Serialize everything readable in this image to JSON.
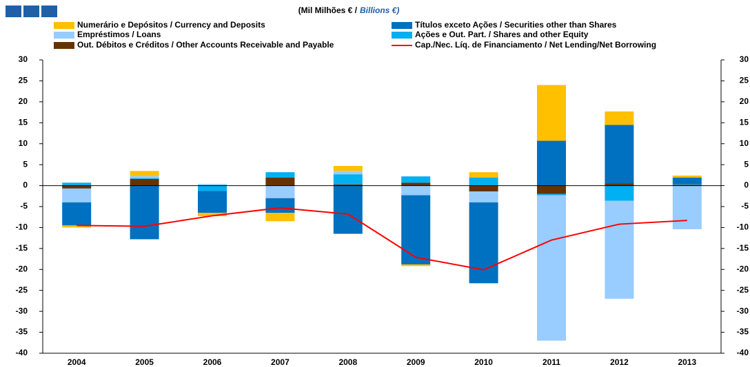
{
  "chart_data": {
    "type": "bar",
    "title": "(Mil Milhões € /",
    "title_en": "Billions €)",
    "categories": [
      "2004",
      "2005",
      "2006",
      "2007",
      "2008",
      "2009",
      "2010",
      "2011",
      "2012",
      "2013"
    ],
    "series": [
      {
        "name": "Numerário e Depósitos / Currency and Deposits",
        "color": "#ffc000",
        "values": [
          -0.5,
          1.2,
          -0.8,
          -2,
          1.2,
          -0.4,
          1.3,
          13.3,
          3.2,
          0.5
        ]
      },
      {
        "name": "Títulos exceto Ações / Securities other than Shares",
        "color": "#0070c0",
        "values": [
          -5.5,
          -12.8,
          -5.2,
          -3.5,
          -11.5,
          -16.5,
          -19.3,
          10.7,
          14,
          1.6
        ]
      },
      {
        "name": "Empréstimos / Loans",
        "color": "#99ccff",
        "values": [
          -3.3,
          0.5,
          0.3,
          -3,
          0.8,
          -2.3,
          -2.6,
          -34.7,
          -23.4,
          -10.4
        ]
      },
      {
        "name": "Ações e Out. Part. / Shares and other Equity",
        "color": "#00b0f0",
        "values": [
          0.7,
          0.2,
          -1.3,
          1.3,
          2.4,
          1.5,
          1.9,
          -0.3,
          -3.6,
          0.1
        ]
      },
      {
        "name": "Out. Débitos e Créditos / Other Accounts Receivable and Payable",
        "color": "#663300",
        "values": [
          -0.7,
          1.6,
          0.1,
          1.9,
          0.3,
          0.7,
          -1.4,
          -2,
          0.5,
          0.2
        ]
      },
      {
        "name": "Cap./Nec. Líq. de Financiamento / Net Lending/Net Borrowing",
        "type": "line",
        "color": "#ff0000",
        "values": [
          -9.5,
          -9.7,
          -7.2,
          -5.3,
          -6.8,
          -17.1,
          -20.1,
          -13,
          -9.2,
          -8.3
        ]
      }
    ],
    "ylim": [
      -40,
      30
    ],
    "yticks": [
      -40,
      -35,
      -30,
      -25,
      -20,
      -15,
      -10,
      -5,
      0,
      5,
      10,
      15,
      20,
      25,
      30
    ]
  }
}
